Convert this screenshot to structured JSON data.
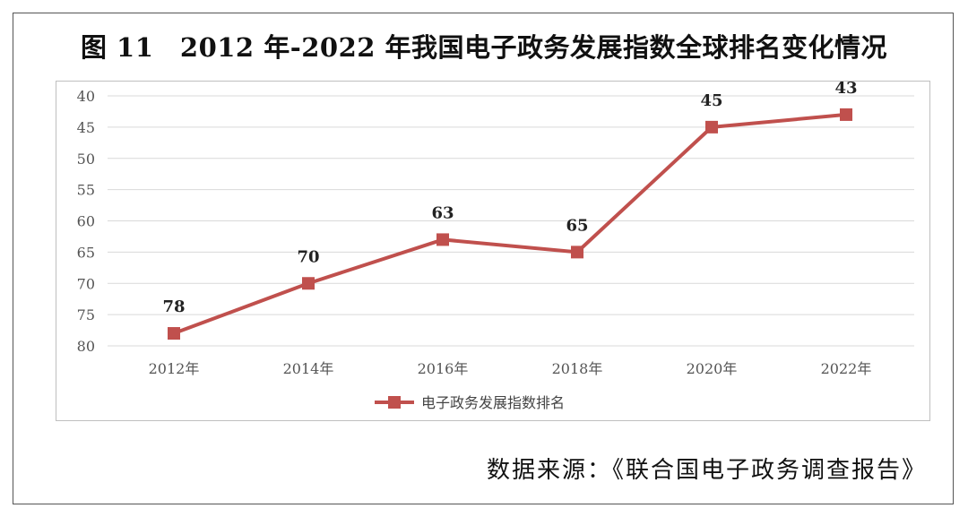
{
  "title": "图 11　2012 年-2022 年我国电子政务发展指数全球排名变化情况",
  "source_note": "数据来源：《联合国电子政务调查报告》",
  "colors": {
    "series": "#c0504d",
    "grid": "#d9d9d9",
    "axis_text": "#555555"
  },
  "chart_data": {
    "type": "line",
    "title": "图 11　2012 年-2022 年我国电子政务发展指数全球排名变化情况",
    "categories": [
      "2012年",
      "2014年",
      "2016年",
      "2018年",
      "2020年",
      "2022年"
    ],
    "series": [
      {
        "name": "电子政务发展指数排名",
        "values": [
          78,
          70,
          63,
          65,
          45,
          43
        ],
        "marker": "square"
      }
    ],
    "ylim": [
      40,
      80
    ],
    "y_inverted": true,
    "yticks": [
      40,
      45,
      50,
      55,
      60,
      65,
      70,
      75,
      80
    ],
    "grid": true,
    "legend_position": "bottom",
    "data_labels": true,
    "xlabel": "",
    "ylabel": ""
  }
}
